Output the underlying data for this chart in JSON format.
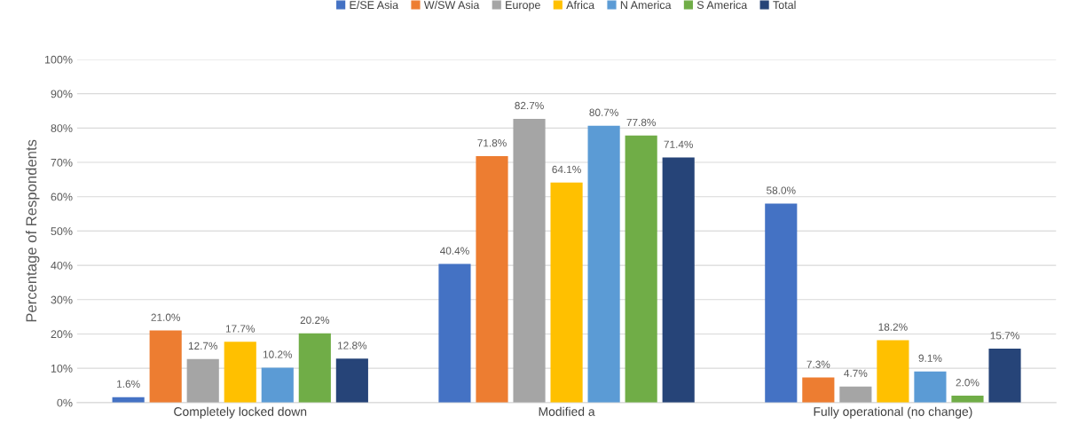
{
  "chart_data": {
    "type": "bar",
    "ylabel": "Percentage of Respondents",
    "categories": [
      "Completely locked down",
      "Modified a",
      "Fully operational (no change)"
    ],
    "series": [
      {
        "name": "E/SE Asia",
        "color": "#4472c4",
        "values": [
          1.6,
          40.4,
          58.0
        ],
        "value_labels": [
          "1.6%",
          "40.4%",
          "58.0%"
        ]
      },
      {
        "name": "W/SW Asia",
        "color": "#ed7d31",
        "values": [
          21.0,
          71.8,
          7.3
        ],
        "value_labels": [
          "21.0%",
          "71.8%",
          "7.3%"
        ]
      },
      {
        "name": "Europe",
        "color": "#a5a5a5",
        "values": [
          12.7,
          82.7,
          4.7
        ],
        "value_labels": [
          "12.7%",
          "82.7%",
          "4.7%"
        ]
      },
      {
        "name": "Africa",
        "color": "#ffc000",
        "values": [
          17.7,
          64.1,
          18.2
        ],
        "value_labels": [
          "17.7%",
          "64.1%",
          "18.2%"
        ]
      },
      {
        "name": "N America",
        "color": "#5b9bd5",
        "values": [
          10.2,
          80.7,
          9.1
        ],
        "value_labels": [
          "10.2%",
          "80.7%",
          "9.1%"
        ]
      },
      {
        "name": "S America",
        "color": "#70ad47",
        "values": [
          20.2,
          77.8,
          2.0
        ],
        "value_labels": [
          "20.2%",
          "77.8%",
          "2.0%"
        ]
      },
      {
        "name": "Total",
        "color": "#264478",
        "values": [
          12.8,
          71.4,
          15.7
        ],
        "value_labels": [
          "12.8%",
          "71.4%",
          "15.7%"
        ]
      }
    ],
    "ylim": [
      0,
      100
    ],
    "yticks": [
      {
        "value": 0,
        "label": "0%"
      },
      {
        "value": 10,
        "label": "10%"
      },
      {
        "value": 20,
        "label": "20%"
      },
      {
        "value": 30,
        "label": "30%"
      },
      {
        "value": 40,
        "label": "40%"
      },
      {
        "value": 50,
        "label": "50%"
      },
      {
        "value": 60,
        "label": "60%"
      },
      {
        "value": 70,
        "label": "70%"
      },
      {
        "value": 80,
        "label": "80%"
      },
      {
        "value": 90,
        "label": "90%"
      },
      {
        "value": 100,
        "label": "100%"
      }
    ],
    "grid": "y",
    "legend": "top"
  }
}
